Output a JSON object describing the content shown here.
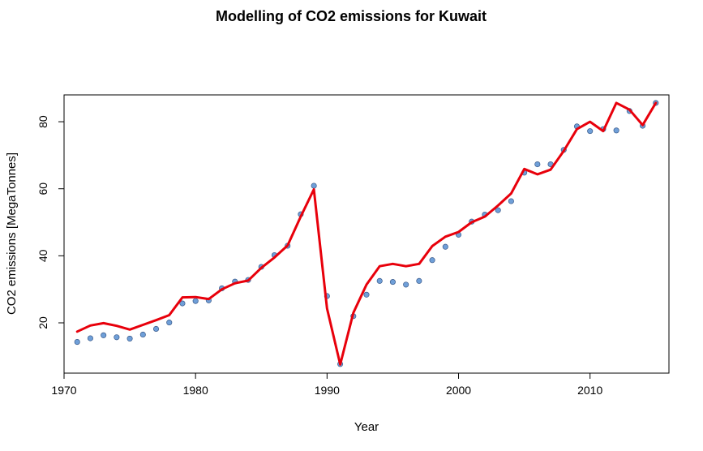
{
  "chart_data": {
    "type": "scatter",
    "title": "Modelling of CO2 emissions for Kuwait",
    "xlabel": "Year",
    "ylabel": "CO2 emissions [MegaTonnes]",
    "xlim": [
      1970,
      2016
    ],
    "ylim": [
      5,
      88
    ],
    "xticks": [
      1970,
      1980,
      1990,
      2000,
      2010
    ],
    "yticks": [
      20,
      40,
      60,
      80
    ],
    "grid": false,
    "legend": "none",
    "series": [
      {
        "type": "scatter",
        "color": "#6f9fd8",
        "x": [
          1971,
          1972,
          1973,
          1974,
          1975,
          1976,
          1977,
          1978,
          1979,
          1980,
          1981,
          1982,
          1983,
          1984,
          1985,
          1986,
          1987,
          1988,
          1989,
          1990,
          1991,
          1992,
          1993,
          1994,
          1995,
          1996,
          1997,
          1998,
          1999,
          2000,
          2001,
          2002,
          2003,
          2004,
          2005,
          2006,
          2007,
          2008,
          2009,
          2010,
          2011,
          2012,
          2013,
          2014,
          2015
        ],
        "y": [
          14.3,
          15.4,
          16.3,
          15.7,
          15.3,
          16.5,
          18.2,
          20.1,
          25.8,
          26.5,
          26.7,
          30.3,
          32.3,
          32.8,
          36.7,
          40.2,
          43.0,
          52.4,
          60.9,
          28.0,
          7.7,
          22.0,
          28.4,
          32.5,
          32.2,
          31.4,
          32.5,
          38.7,
          42.7,
          46.3,
          50.2,
          52.3,
          53.6,
          56.3,
          64.8,
          67.3,
          67.3,
          71.6,
          78.6,
          77.2,
          77.8,
          77.4,
          83.2,
          78.8,
          85.6
        ]
      },
      {
        "type": "line",
        "color": "#e8000b",
        "x": [
          1971,
          1972,
          1973,
          1974,
          1975,
          1976,
          1977,
          1978,
          1979,
          1980,
          1981,
          1982,
          1983,
          1984,
          1985,
          1986,
          1987,
          1988,
          1989,
          1990,
          1991,
          1992,
          1993,
          1994,
          1995,
          1996,
          1997,
          1998,
          1999,
          2000,
          2001,
          2002,
          2003,
          2004,
          2005,
          2006,
          2007,
          2008,
          2009,
          2010,
          2011,
          2012,
          2013,
          2014,
          2015
        ],
        "y": [
          17.4,
          19.2,
          19.9,
          19.1,
          18.0,
          19.4,
          20.8,
          22.3,
          27.6,
          27.7,
          27.1,
          30.0,
          31.8,
          32.6,
          36.4,
          39.5,
          43.1,
          51.7,
          59.8,
          24.3,
          7.6,
          23.0,
          31.4,
          36.9,
          37.6,
          36.9,
          37.6,
          42.9,
          45.7,
          47.1,
          50.0,
          51.7,
          55.0,
          58.6,
          65.9,
          64.3,
          65.7,
          71.3,
          77.8,
          80.0,
          77.2,
          85.6,
          83.6,
          79.0,
          85.6
        ]
      }
    ]
  }
}
